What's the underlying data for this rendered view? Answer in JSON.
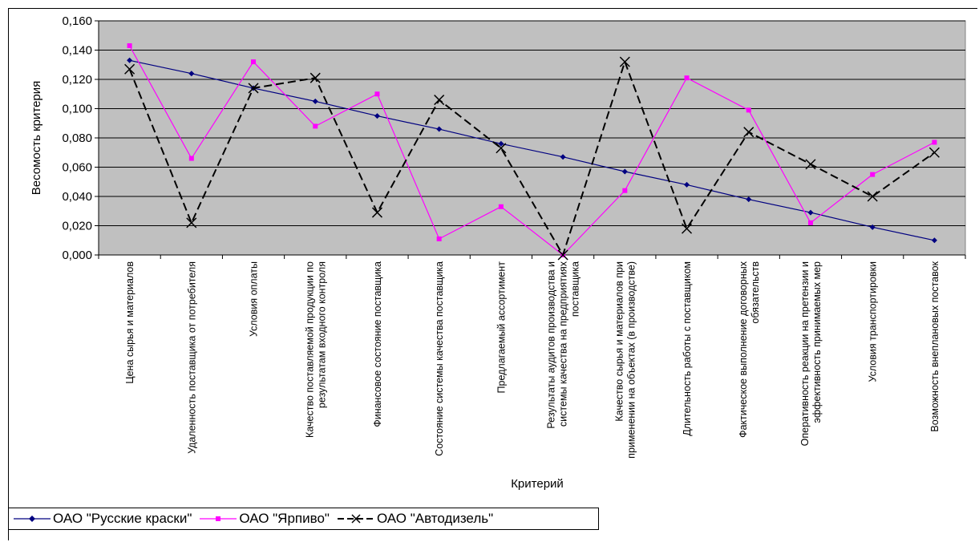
{
  "chart_data": {
    "type": "line",
    "title": "",
    "xlabel": "Критерий",
    "ylabel": "Весомость критерия",
    "ylim": [
      0,
      0.16
    ],
    "yticks": [
      "0,000",
      "0,020",
      "0,040",
      "0,060",
      "0,080",
      "0,100",
      "0,120",
      "0,140",
      "0,160"
    ],
    "grid": true,
    "legend_position": "bottom-left",
    "plot_background": "#c0c0c0",
    "categories": [
      "Цена сырья и материалов",
      "Удаленность поставщика от потребителя",
      "Условия оплаты",
      "Качество поставляемой продукции по результатам входного контроля",
      "Финансовое состояние поставщика",
      "Состояние системы качества поставщика",
      "Предлагаемый ассортимент",
      "Результаты аудитов производства и системы качества на предприятиях поставщика",
      "Качество сырья и материалов при применении на объектах (в производстве)",
      "Длительность работы с поставщиком",
      "Фактическое выполнение договорных обязательств",
      "Оперативность реакции на претензии и эффективность принимаемых мер",
      "Условия транспортировки",
      "Возможность внеплановых поставок"
    ],
    "category_lines": [
      [
        "Цена сырья и материалов"
      ],
      [
        "Удаленность поставщика от потребителя"
      ],
      [
        "Условия оплаты"
      ],
      [
        "Качество поставляемой продукции по",
        "результатам входного контроля"
      ],
      [
        "Финансовое состояние поставщика"
      ],
      [
        "Состояние системы качества поставщика"
      ],
      [
        "Предлагаемый ассортимент"
      ],
      [
        "Результаты аудитов производства и",
        "системы качества на предприятиях",
        "поставщика"
      ],
      [
        "Качество сырья и материалов при",
        "применении на объектах (в производстве)"
      ],
      [
        "Длительность работы с поставщиком"
      ],
      [
        "Фактическое выполнение договорных",
        "обязательств"
      ],
      [
        "Оперативность реакции на претензии и",
        "эффективность принимаемых мер"
      ],
      [
        "Условия транспортировки"
      ],
      [
        "Возможность внеплановых поставок"
      ]
    ],
    "series": [
      {
        "name": "ОАО \"Русские краски\"",
        "color": "#000080",
        "marker": "diamond",
        "dash": "solid",
        "values": [
          0.133,
          0.124,
          0.114,
          0.105,
          0.095,
          0.086,
          0.076,
          0.067,
          0.057,
          0.048,
          0.038,
          0.029,
          0.019,
          0.01
        ]
      },
      {
        "name": "ОАО \"Ярпиво\"",
        "color": "#ff00ff",
        "marker": "square",
        "dash": "solid",
        "values": [
          0.143,
          0.066,
          0.132,
          0.088,
          0.11,
          0.011,
          0.033,
          0.0,
          0.044,
          0.121,
          0.099,
          0.022,
          0.055,
          0.077
        ]
      },
      {
        "name": "ОАО \"Автодизель\"",
        "color": "#000000",
        "marker": "x",
        "dash": "dashed",
        "values": [
          0.127,
          0.022,
          0.114,
          0.121,
          0.029,
          0.106,
          0.073,
          0.0,
          0.132,
          0.018,
          0.084,
          0.062,
          0.04,
          0.07
        ]
      }
    ]
  }
}
